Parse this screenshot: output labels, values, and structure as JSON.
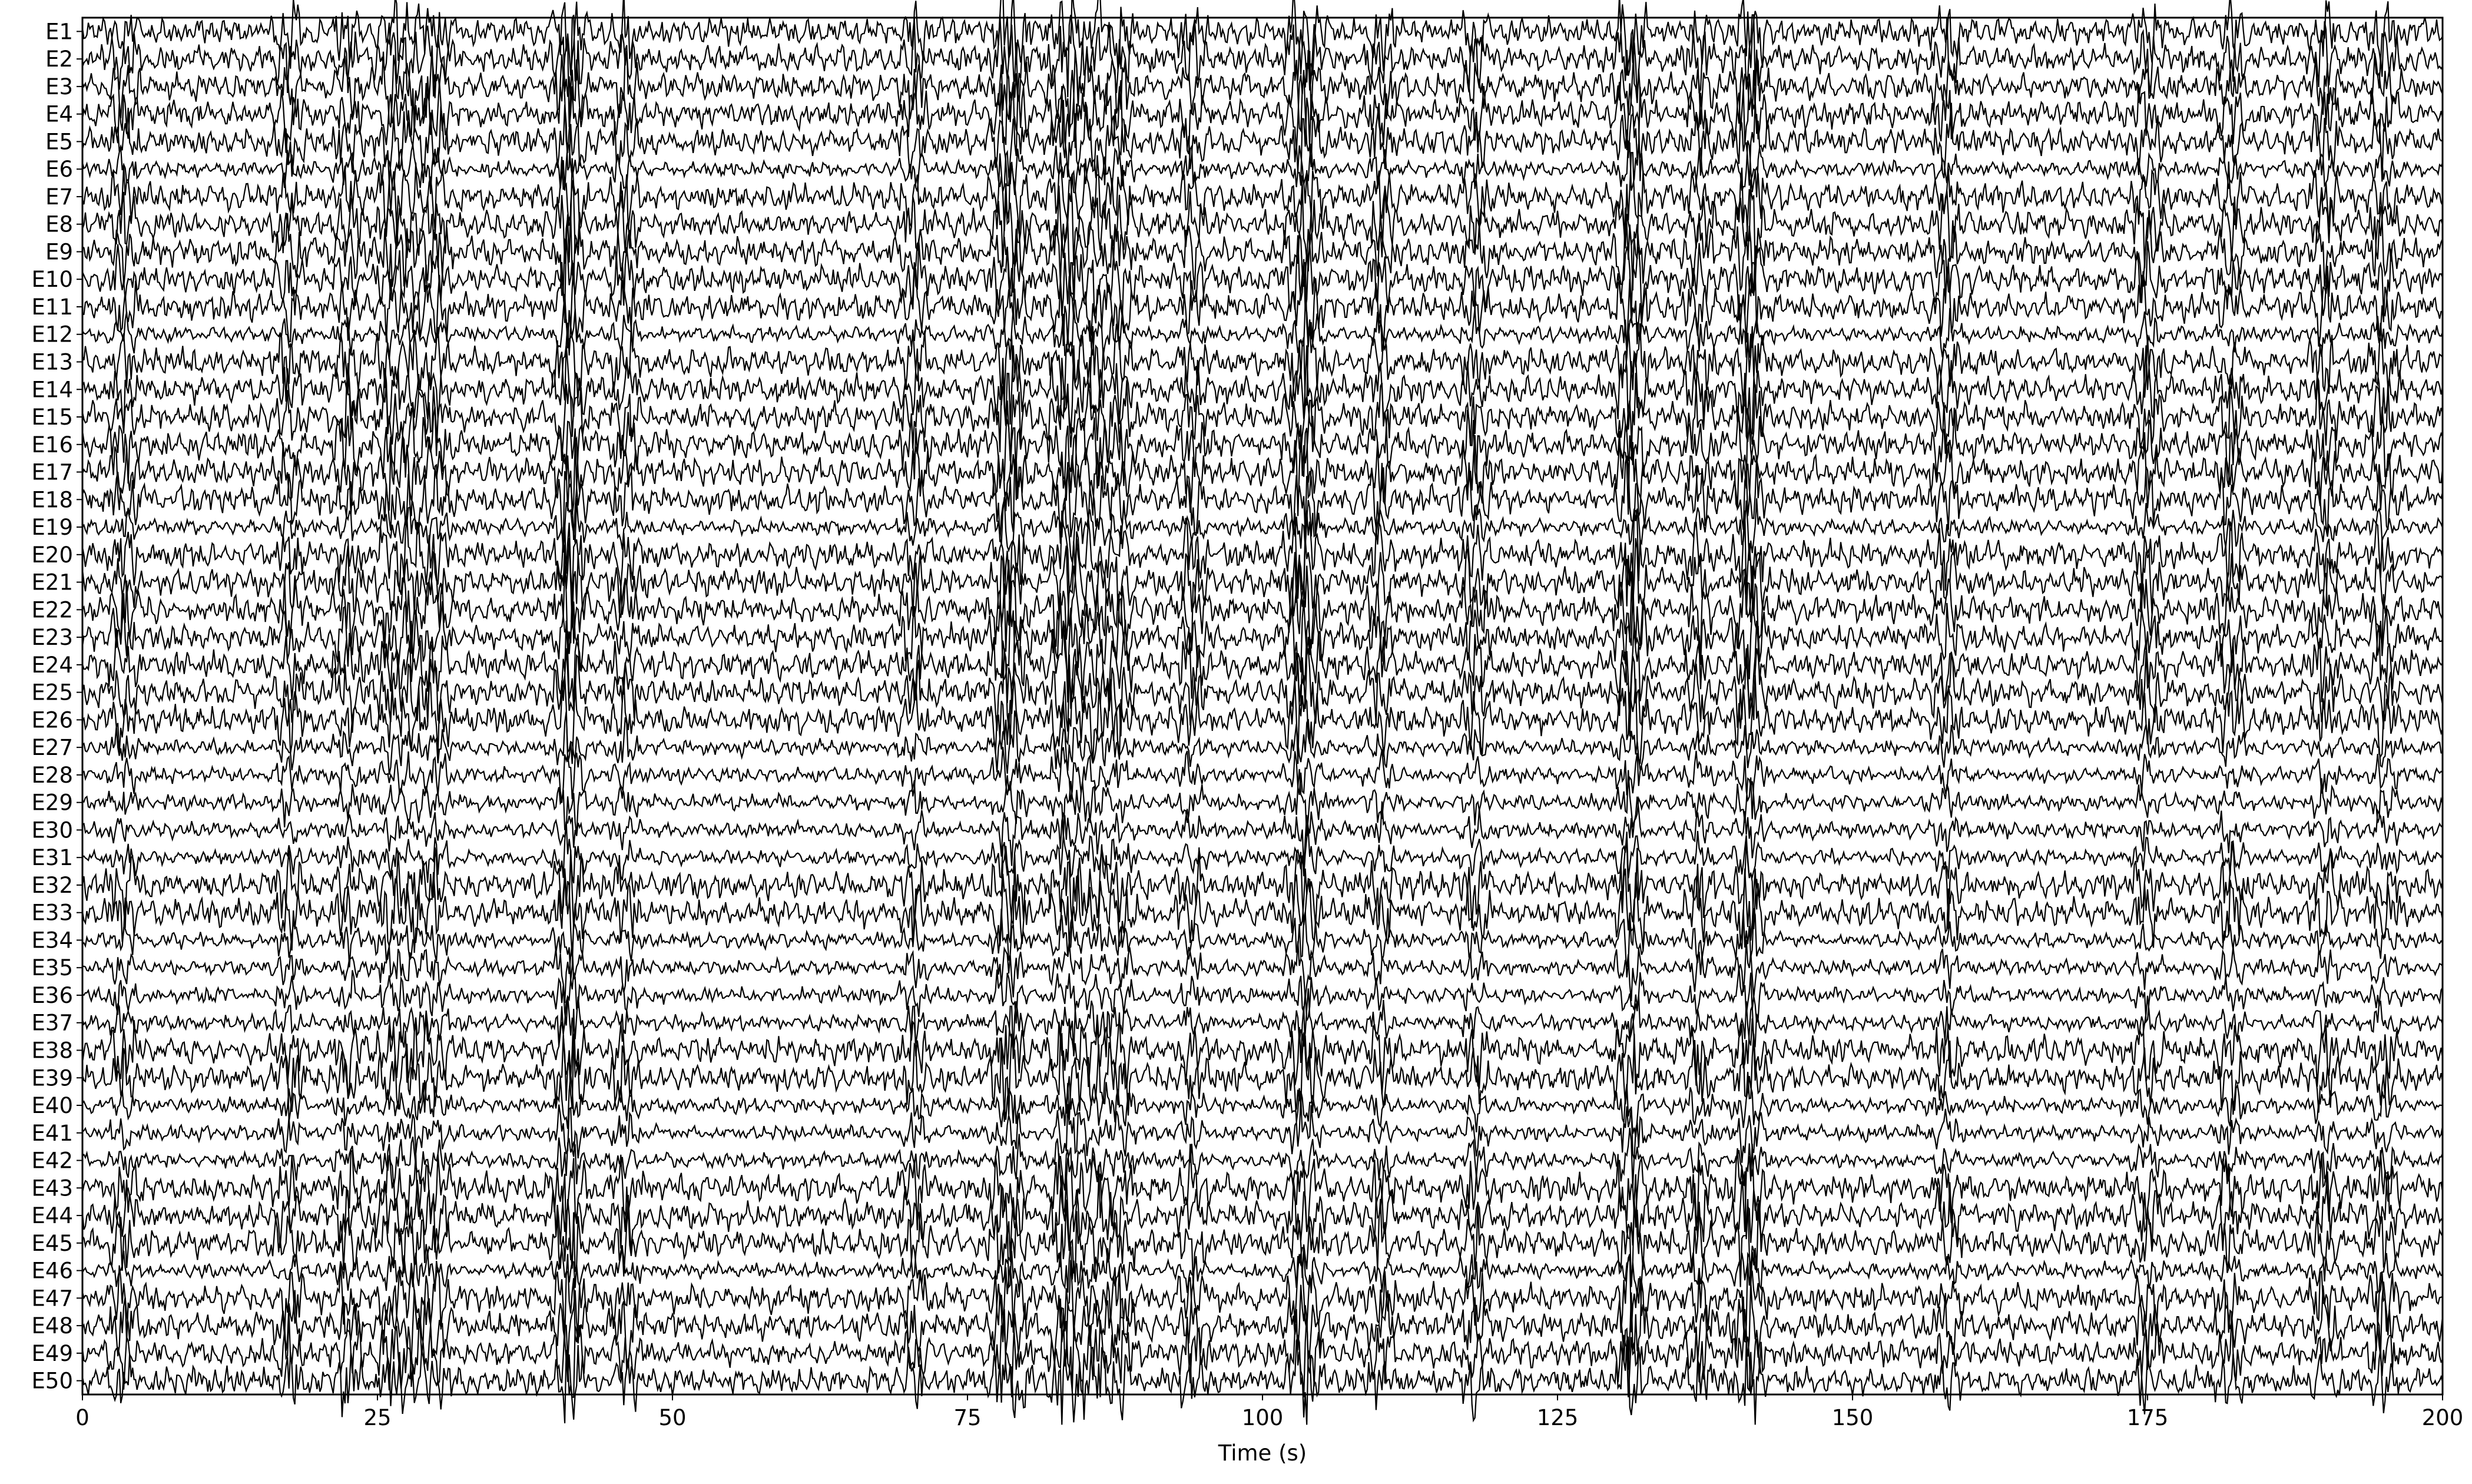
{
  "chart_data": {
    "type": "line",
    "title": "",
    "xlabel": "Time (s)",
    "ylabel": "",
    "xlim": [
      0,
      200
    ],
    "x_ticks": [
      0,
      25,
      50,
      75,
      100,
      125,
      150,
      175,
      200
    ],
    "x_tick_labels": [
      "0",
      "25",
      "50",
      "75",
      "100",
      "125",
      "150",
      "175",
      "200"
    ],
    "grid": false,
    "legend": "none",
    "line_color": "#000000",
    "channels": [
      "E1",
      "E2",
      "E3",
      "E4",
      "E5",
      "E6",
      "E7",
      "E8",
      "E9",
      "E10",
      "E11",
      "E12",
      "E13",
      "E14",
      "E15",
      "E16",
      "E17",
      "E18",
      "E19",
      "E20",
      "E21",
      "E22",
      "E23",
      "E24",
      "E25",
      "E26",
      "E27",
      "E28",
      "E29",
      "E30",
      "E31",
      "E32",
      "E33",
      "E34",
      "E35",
      "E36",
      "E37",
      "E38",
      "E39",
      "E40",
      "E41",
      "E42",
      "E43",
      "E44",
      "E45",
      "E46",
      "E47",
      "E48",
      "E49",
      "E50"
    ],
    "artifact_times_s": [
      3.5,
      17.5,
      22.5,
      26,
      28,
      30,
      41,
      41.5,
      46,
      70.5,
      78,
      79,
      83,
      84,
      86,
      88,
      94,
      103,
      104,
      110,
      118,
      131,
      131.5,
      137,
      141,
      141.5,
      158,
      175,
      182,
      190,
      195
    ]
  }
}
